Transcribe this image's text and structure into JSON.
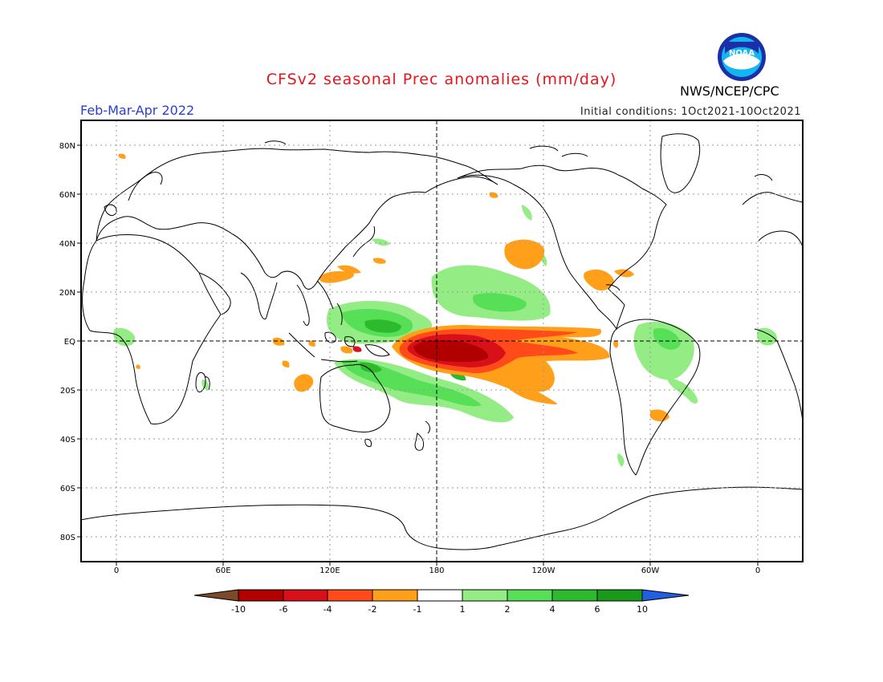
{
  "header": {
    "title": "CFSv2 seasonal Prec anomalies (mm/day)",
    "period": "Feb-Mar-Apr 2022",
    "initial_conditions": "Initial conditions: 1Oct2021-10Oct2021",
    "agency": "NWS/NCEP/CPC",
    "logo_text": "NOAA"
  },
  "map": {
    "lat_labels": [
      "80N",
      "60N",
      "40N",
      "20N",
      "EQ",
      "20S",
      "40S",
      "60S",
      "80S"
    ],
    "lon_labels": [
      "0",
      "60E",
      "120E",
      "180",
      "120W",
      "60W",
      "0"
    ]
  },
  "legend": {
    "tick_labels": [
      "-10",
      "-6",
      "-4",
      "-2",
      "-1",
      "1",
      "2",
      "4",
      "6",
      "10"
    ],
    "colors": [
      "#7a4a2a",
      "#b00000",
      "#d8101a",
      "#ff4a1a",
      "#ff9f1a",
      "#ffffff",
      "#94ec84",
      "#58df58",
      "#2dba2d",
      "#1a9a1a",
      "#2060e0"
    ]
  },
  "colors": {
    "title": "#e8141b",
    "period": "#2b3fd6",
    "orange": "#ff9f1a",
    "red": "#ff4a1a",
    "dark_red": "#b00000",
    "light_green": "#94ec84",
    "green": "#58df58",
    "dark_green": "#2dba2d"
  }
}
